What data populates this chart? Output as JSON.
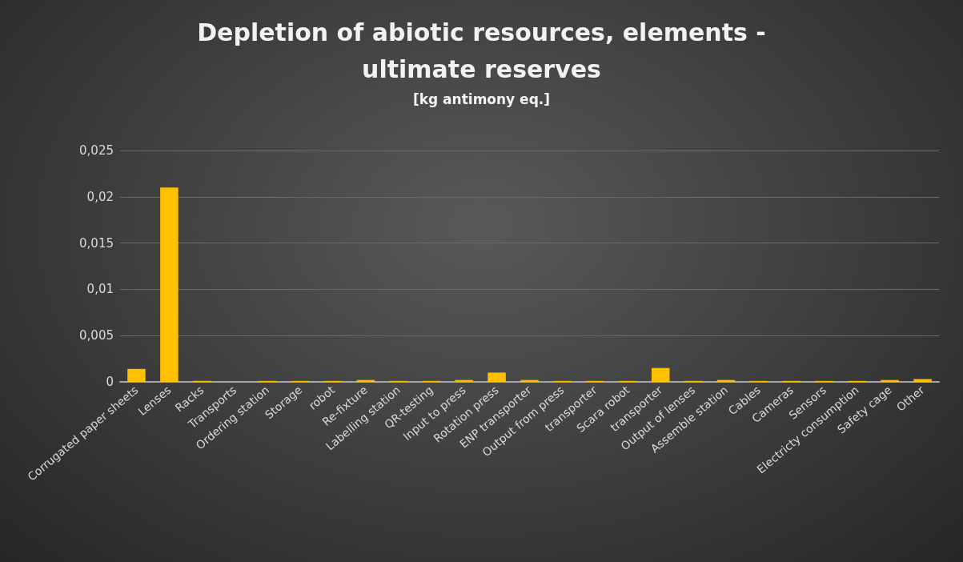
{
  "chart_data": {
    "type": "bar",
    "title": "Depletion of abiotic resources, elements -\nultimate reserves",
    "subtitle": "[kg antimony eq.]",
    "categories": [
      "Corrugated paper sheets",
      "Lenses",
      "Racks",
      "Transports",
      "Ordering station",
      "Storage",
      "robot",
      "Re-fixture",
      "Labelling station",
      "QR-testing",
      "Input to press",
      "Rotation press",
      "ENP transporter",
      "Output from press",
      "transporter",
      "Scara robot",
      "transporter",
      "Output of lenses",
      "Assemble station",
      "Cables",
      "Cameras",
      "Sensors",
      "Electricty consumption",
      "Safety cage",
      "Other"
    ],
    "values": [
      0.0014,
      0.021,
      0.0001,
      0,
      0.0001,
      0.0001,
      0.0001,
      0.0002,
      0.0001,
      0.0001,
      0.0002,
      0.001,
      0.0002,
      0.0001,
      0.0001,
      0.0001,
      0.0015,
      0.0001,
      0.0002,
      0.0001,
      0.0001,
      0.0001,
      0.0001,
      0.0002,
      0.0003
    ],
    "color": "#ffc000",
    "ylim": [
      0,
      0.025
    ],
    "yticks": [
      {
        "value": 0,
        "label": "0"
      },
      {
        "value": 0.005,
        "label": "0,005"
      },
      {
        "value": 0.01,
        "label": "0,01"
      },
      {
        "value": 0.015,
        "label": "0,015"
      },
      {
        "value": 0.02,
        "label": "0,02"
      },
      {
        "value": 0.025,
        "label": "0,025"
      }
    ],
    "grid": "y"
  }
}
